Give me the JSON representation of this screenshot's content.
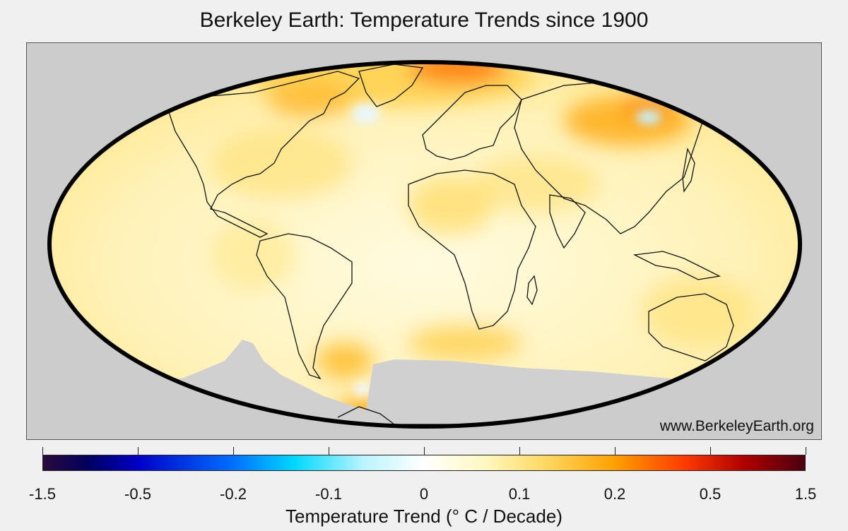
{
  "title": "Berkeley Earth: Temperature Trends since 1900",
  "watermark": "www.BerkeleyEarth.org",
  "colorbar": {
    "label": "Temperature Trend (° C / Decade)",
    "ticks": [
      "-1.5",
      "-0.5",
      "-0.2",
      "-0.1",
      "0",
      "0.1",
      "0.2",
      "0.5",
      "1.5"
    ]
  },
  "colors": {
    "background": "#f0f0f0",
    "map_frame": "#cccccc",
    "no_data": "#d0d0d0",
    "warming_base": "#fff2b0",
    "warming_mid": "#ffc840",
    "warming_strong": "#ff5a00"
  }
}
